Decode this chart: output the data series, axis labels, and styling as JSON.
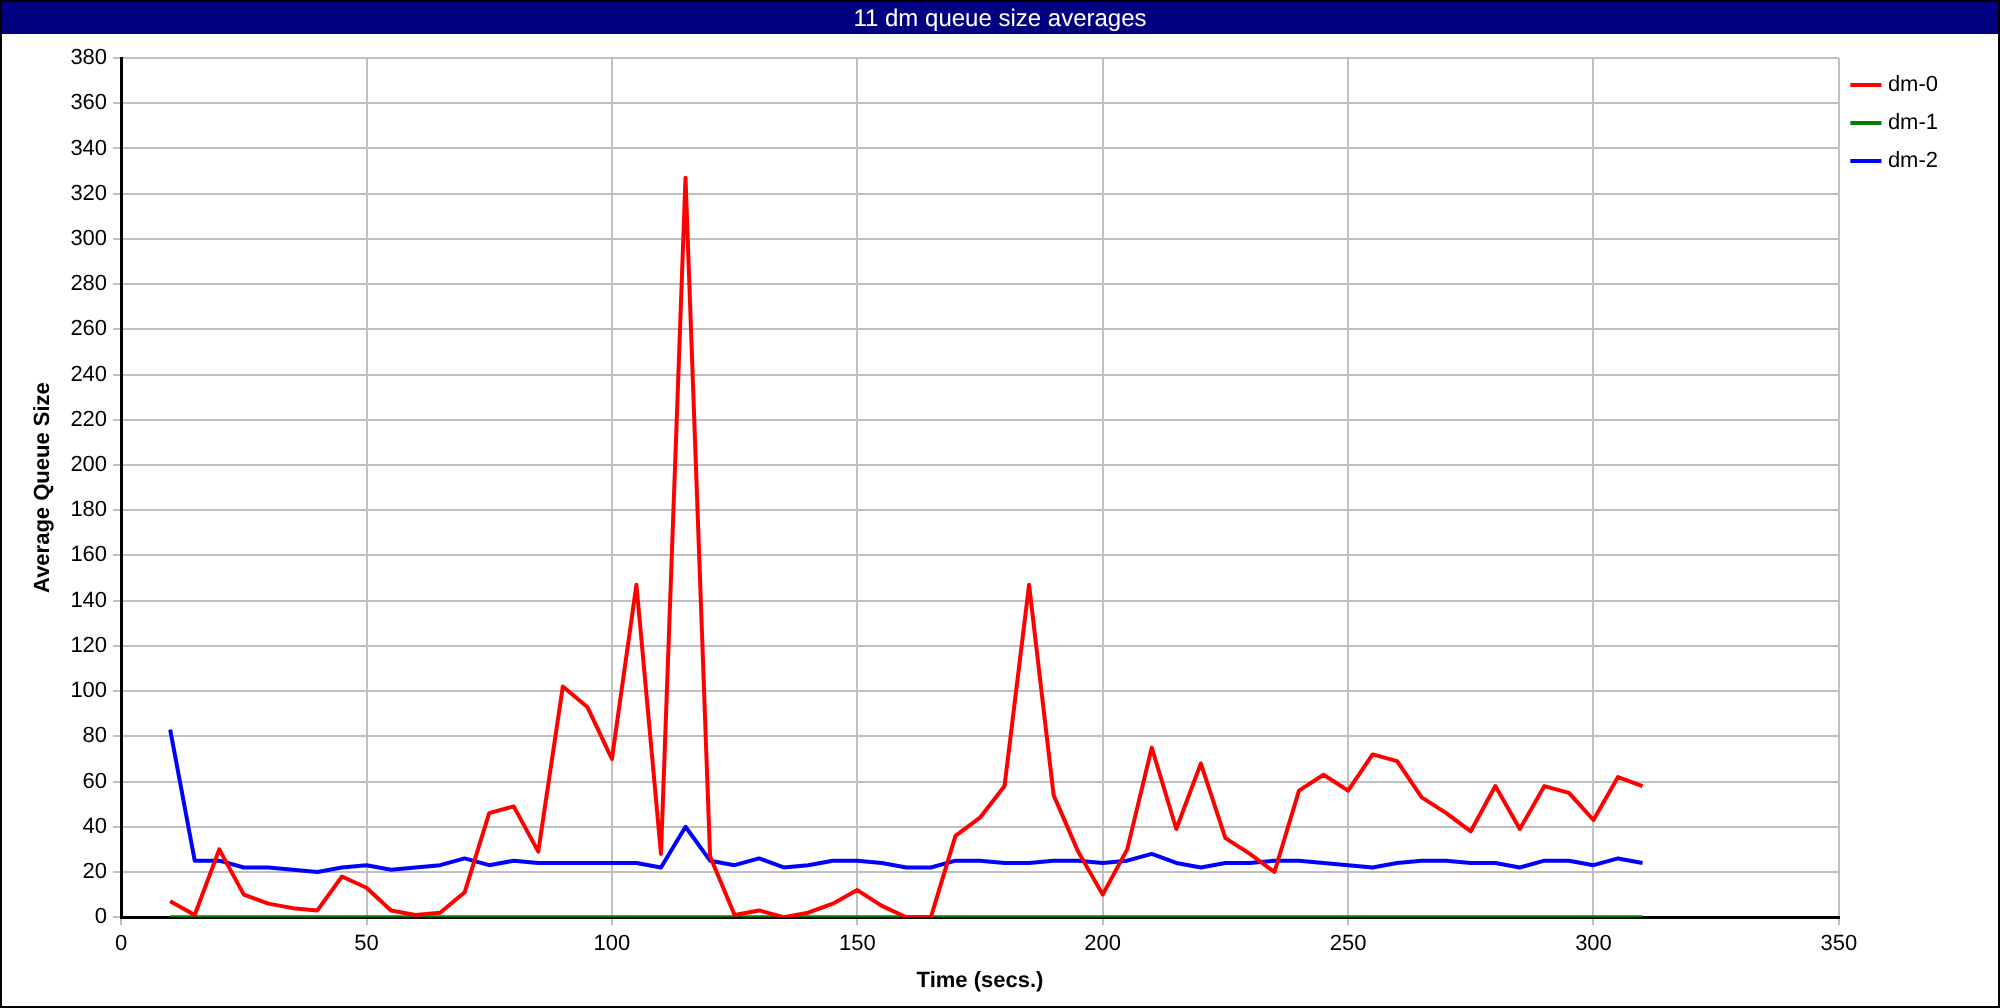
{
  "chart_data": {
    "type": "line",
    "title": "11 dm queue size averages",
    "xlabel": "Time (secs.)",
    "ylabel": "Average Queue Size",
    "x": [
      10,
      15,
      20,
      25,
      30,
      35,
      40,
      45,
      50,
      55,
      60,
      65,
      70,
      75,
      80,
      85,
      90,
      95,
      100,
      105,
      110,
      115,
      120,
      125,
      130,
      135,
      140,
      145,
      150,
      155,
      160,
      165,
      170,
      175,
      180,
      185,
      190,
      195,
      200,
      205,
      210,
      215,
      220,
      225,
      230,
      235,
      240,
      245,
      250,
      255,
      260,
      265,
      270,
      275,
      280,
      285,
      290,
      295,
      300,
      305,
      310
    ],
    "series": [
      {
        "name": "dm-0",
        "color": "#ff0000",
        "values": [
          7,
          1,
          30,
          10,
          6,
          4,
          3,
          18,
          13,
          3,
          1,
          2,
          11,
          46,
          49,
          29,
          102,
          93,
          70,
          147,
          28,
          327,
          27,
          1,
          3,
          0,
          2,
          6,
          12,
          5,
          0,
          0,
          36,
          44,
          58,
          147,
          54,
          29,
          10,
          30,
          75,
          39,
          68,
          35,
          28,
          20,
          56,
          63,
          56,
          72,
          69,
          53,
          46,
          38,
          58,
          39,
          58,
          55,
          43,
          62,
          58
        ]
      },
      {
        "name": "dm-1",
        "color": "#008000",
        "values": [
          0,
          0,
          0,
          0,
          0,
          0,
          0,
          0,
          0,
          0,
          0,
          0,
          0,
          0,
          0,
          0,
          0,
          0,
          0,
          0,
          0,
          0,
          0,
          0,
          0,
          0,
          0,
          0,
          0,
          0,
          0,
          0,
          0,
          0,
          0,
          0,
          0,
          0,
          0,
          0,
          0,
          0,
          0,
          0,
          0,
          0,
          0,
          0,
          0,
          0,
          0,
          0,
          0,
          0,
          0,
          0,
          0,
          0,
          0,
          0,
          0
        ]
      },
      {
        "name": "dm-2",
        "color": "#0000ff",
        "values": [
          83,
          25,
          25,
          22,
          22,
          21,
          20,
          22,
          23,
          21,
          22,
          23,
          26,
          23,
          25,
          24,
          24,
          24,
          24,
          24,
          22,
          40,
          25,
          23,
          26,
          22,
          23,
          25,
          25,
          24,
          22,
          22,
          25,
          25,
          24,
          24,
          25,
          25,
          24,
          25,
          28,
          24,
          22,
          24,
          24,
          25,
          25,
          24,
          23,
          22,
          24,
          25,
          25,
          24,
          24,
          22,
          25,
          25,
          23,
          26,
          24
        ]
      }
    ],
    "xlim": [
      0,
      350
    ],
    "xticks": [
      0,
      50,
      100,
      150,
      200,
      250,
      300,
      350
    ],
    "ylim": [
      0,
      380
    ],
    "yticks": [
      0,
      20,
      40,
      60,
      80,
      100,
      120,
      140,
      160,
      180,
      200,
      220,
      240,
      260,
      280,
      300,
      320,
      340,
      360,
      380
    ],
    "grid": true,
    "legend": "top right",
    "marker": "none",
    "line_style": "solid"
  }
}
